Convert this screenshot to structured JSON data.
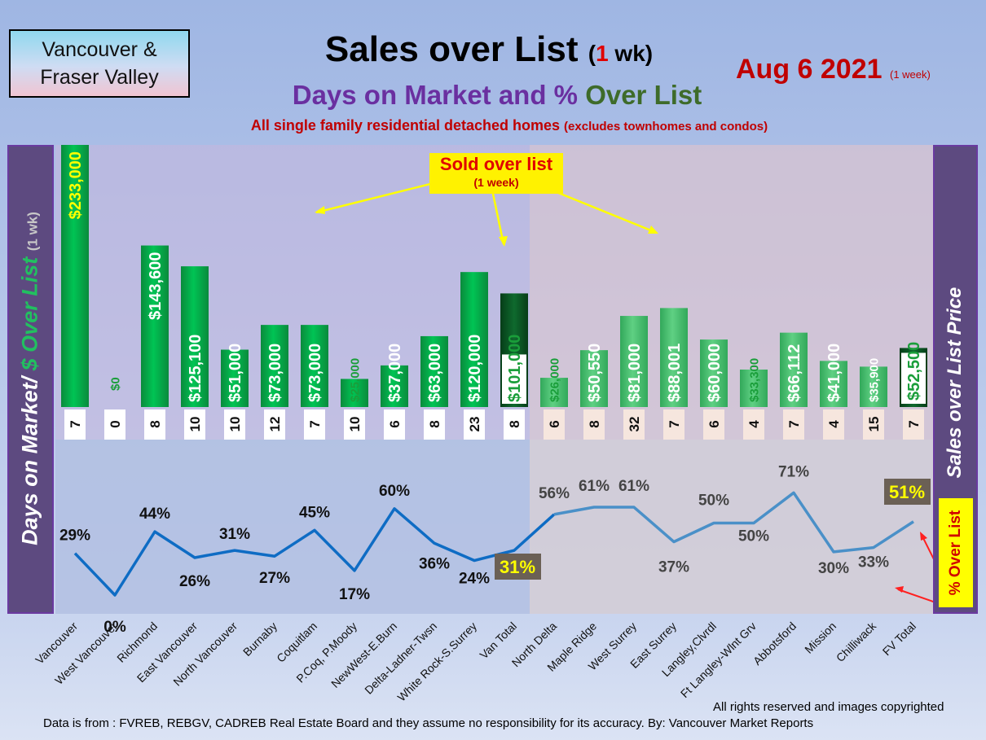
{
  "header": {
    "region_line1": "Vancouver &",
    "region_line2": "Fraser Valley",
    "title_main": "Sales over List",
    "title_open": "(",
    "title_num": "1",
    "title_close": " wk)",
    "subtitle_part1": "Days on Market and % ",
    "subtitle_part2": "Over List",
    "note_main": "All single family residential detached homes",
    "note_small": "(excludes townhomes and condos)",
    "date": "Aug 6  2021",
    "date_small": "(1 week)",
    "sold_label": "Sold over list",
    "sold_label_small": "(1 week)"
  },
  "side": {
    "left_part1": "Days on Market/ ",
    "left_part2": "$ Over List",
    "left_small": "(1 wk)",
    "right_label": "Sales over List Price",
    "pct_label": "% Over List"
  },
  "footer": {
    "rights": "All rights reserved and  images copyrighted",
    "source": "Data is from : FVREB, REBGV, CADREB Real Estate Board and they assume no responsibility for its accuracy. By: Vancouver Market Reports"
  },
  "colors": {
    "bar_van": "#00b050",
    "bar_fv": "#4cc470",
    "bar_total": "#0b5a26",
    "line_van": "#0e6cc4",
    "line_fv": "#4a90c8",
    "label_yellow": "#ffff00",
    "label_green": "#1a9e3a"
  },
  "chart_data": {
    "type": "bar",
    "categories": [
      "Vancouver",
      "West Vancouver",
      "Richmond",
      "East Vancouver",
      "North Vancouver",
      "Burnaby",
      "Coquitlam",
      "P.Coq, P.Moody",
      "NewWest-E.Burn",
      "Delta-Ladner-Twsn",
      "White Rock-S.Surrey",
      "Van Total",
      "North Delta",
      "Maple Ridge",
      "West Surrey",
      "East Surrey",
      "Langley,Clvrdl",
      "Ft Langley-Wlnt Grv",
      "Abbotsford",
      "Mission",
      "Chilliwack",
      "FV Total"
    ],
    "series": [
      {
        "values": [
          233000,
          0,
          143600,
          125100,
          51000,
          73000,
          73000,
          25000,
          37000,
          63000,
          120000,
          101000,
          26000,
          50550,
          81000,
          88001,
          60000,
          33300,
          66112,
          41000,
          35900,
          52500
        ],
        "labels": [
          "$233,000",
          "$0",
          "$143,600",
          "$125,100",
          "$51,000",
          "$73,000",
          "$73,000",
          "$25,000",
          "$37,000",
          "$63,000",
          "$120,000",
          "$101,000",
          "$26,000",
          "$50,550",
          "$81,000",
          "$88,001",
          "$60,000",
          "$33,300",
          "$66,112",
          "$41,000",
          "$35,900",
          "$52,500"
        ]
      },
      {
        "values": [
          7,
          0,
          8,
          10,
          10,
          12,
          7,
          10,
          6,
          8,
          23,
          8,
          6,
          8,
          32,
          7,
          6,
          4,
          7,
          4,
          15,
          7
        ]
      },
      {
        "type": "line",
        "values": [
          29,
          0,
          44,
          26,
          31,
          27,
          45,
          17,
          60,
          36,
          24,
          31,
          56,
          61,
          61,
          37,
          50,
          50,
          71,
          30,
          33,
          51
        ],
        "labels": [
          "29%",
          "0%",
          "44%",
          "26%",
          "31%",
          "27%",
          "45%",
          "17%",
          "60%",
          "36%",
          "24%",
          "31%",
          "56%",
          "61%",
          "61%",
          "37%",
          "50%",
          "50%",
          "71%",
          "30%",
          "33%",
          "51%"
        ]
      }
    ],
    "xlabel": "",
    "ylabel": "",
    "grid": false
  }
}
